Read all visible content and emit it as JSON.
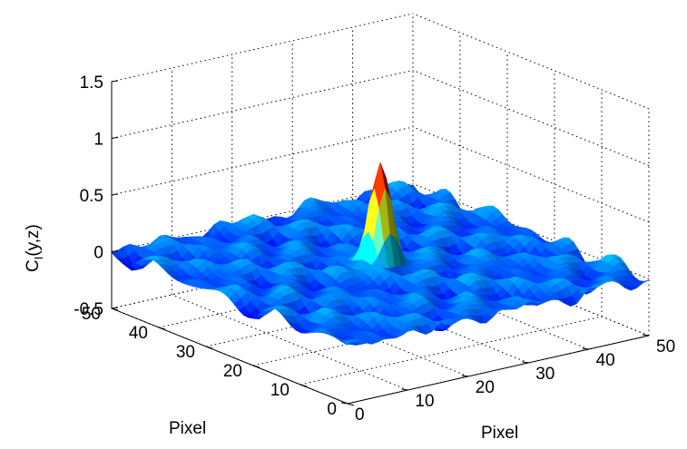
{
  "chart_data": {
    "type": "surface",
    "zlabel_main": "C",
    "zlabel_sub": "I",
    "zlabel_args": "(y,z)",
    "xlabel": "Pixel",
    "ylabel": "Pixel",
    "x_ticks": [
      "0",
      "10",
      "20",
      "30",
      "40",
      "50"
    ],
    "y_ticks": [
      "0",
      "10",
      "20",
      "30",
      "40",
      "50"
    ],
    "z_ticks": [
      "-0.5",
      "0",
      "0.5",
      "1",
      "1.5"
    ],
    "x_range": [
      0,
      50
    ],
    "y_range": [
      0,
      50
    ],
    "z_range": [
      -0.5,
      1.5
    ],
    "grid": true,
    "colormap": "jet",
    "peak": {
      "x": 25,
      "y": 25,
      "z": 0.9
    },
    "background_level": 0.0,
    "background_ripple": 0.1
  }
}
